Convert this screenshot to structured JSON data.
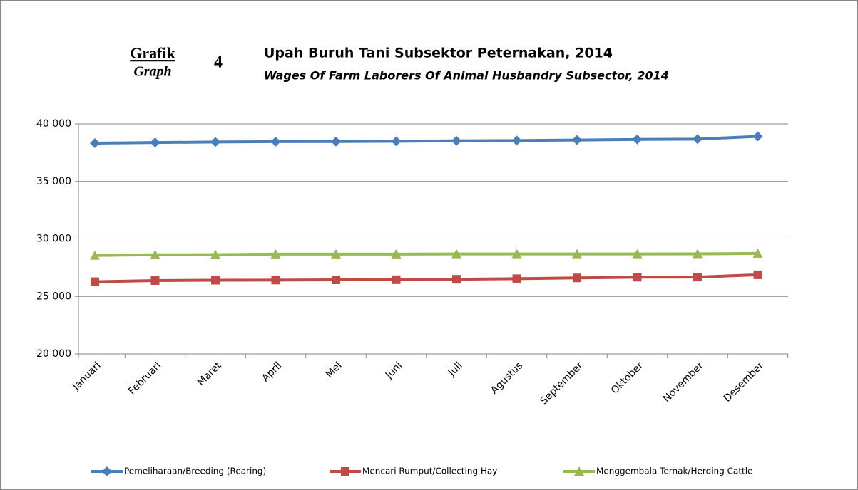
{
  "chart_data": {
    "type": "line",
    "label": "Grafik",
    "label_en": "Graph",
    "number": "4",
    "title": "Upah Buruh Tani Subsektor Peternakan, 2014",
    "subtitle": "Wages Of Farm Laborers Of  Animal Husbandry Subsector, 2014",
    "categories": [
      "Januari",
      "Februari",
      "Maret",
      "April",
      "Mei",
      "Juni",
      "Juli",
      "Agustus",
      "September",
      "Oktober",
      "November",
      "Desember"
    ],
    "series": [
      {
        "name": "Pemeliharaan/Breeding (Rearing)",
        "color": "#4a7ebb",
        "marker": "diamond",
        "values": [
          38330,
          38380,
          38430,
          38460,
          38470,
          38490,
          38530,
          38550,
          38600,
          38650,
          38680,
          38920
        ]
      },
      {
        "name": "Mencari Rumput/Collecting Hay",
        "color": "#be4b48",
        "marker": "square",
        "values": [
          26280,
          26380,
          26410,
          26420,
          26440,
          26450,
          26490,
          26540,
          26610,
          26670,
          26680,
          26880
        ]
      },
      {
        "name": "Menggembala Ternak/Herding Cattle",
        "color": "#98b954",
        "marker": "triangle",
        "values": [
          28560,
          28620,
          28630,
          28680,
          28680,
          28680,
          28690,
          28690,
          28690,
          28690,
          28700,
          28740
        ]
      }
    ],
    "ylim": [
      20000,
      40000
    ],
    "yticks": [
      {
        "value": 20000,
        "label": "20 000"
      },
      {
        "value": 25000,
        "label": "25 000"
      },
      {
        "value": 30000,
        "label": "30 000"
      },
      {
        "value": 35000,
        "label": "35 000"
      },
      {
        "value": 40000,
        "label": "40 000"
      }
    ],
    "grid": true,
    "legend": "bottom"
  }
}
